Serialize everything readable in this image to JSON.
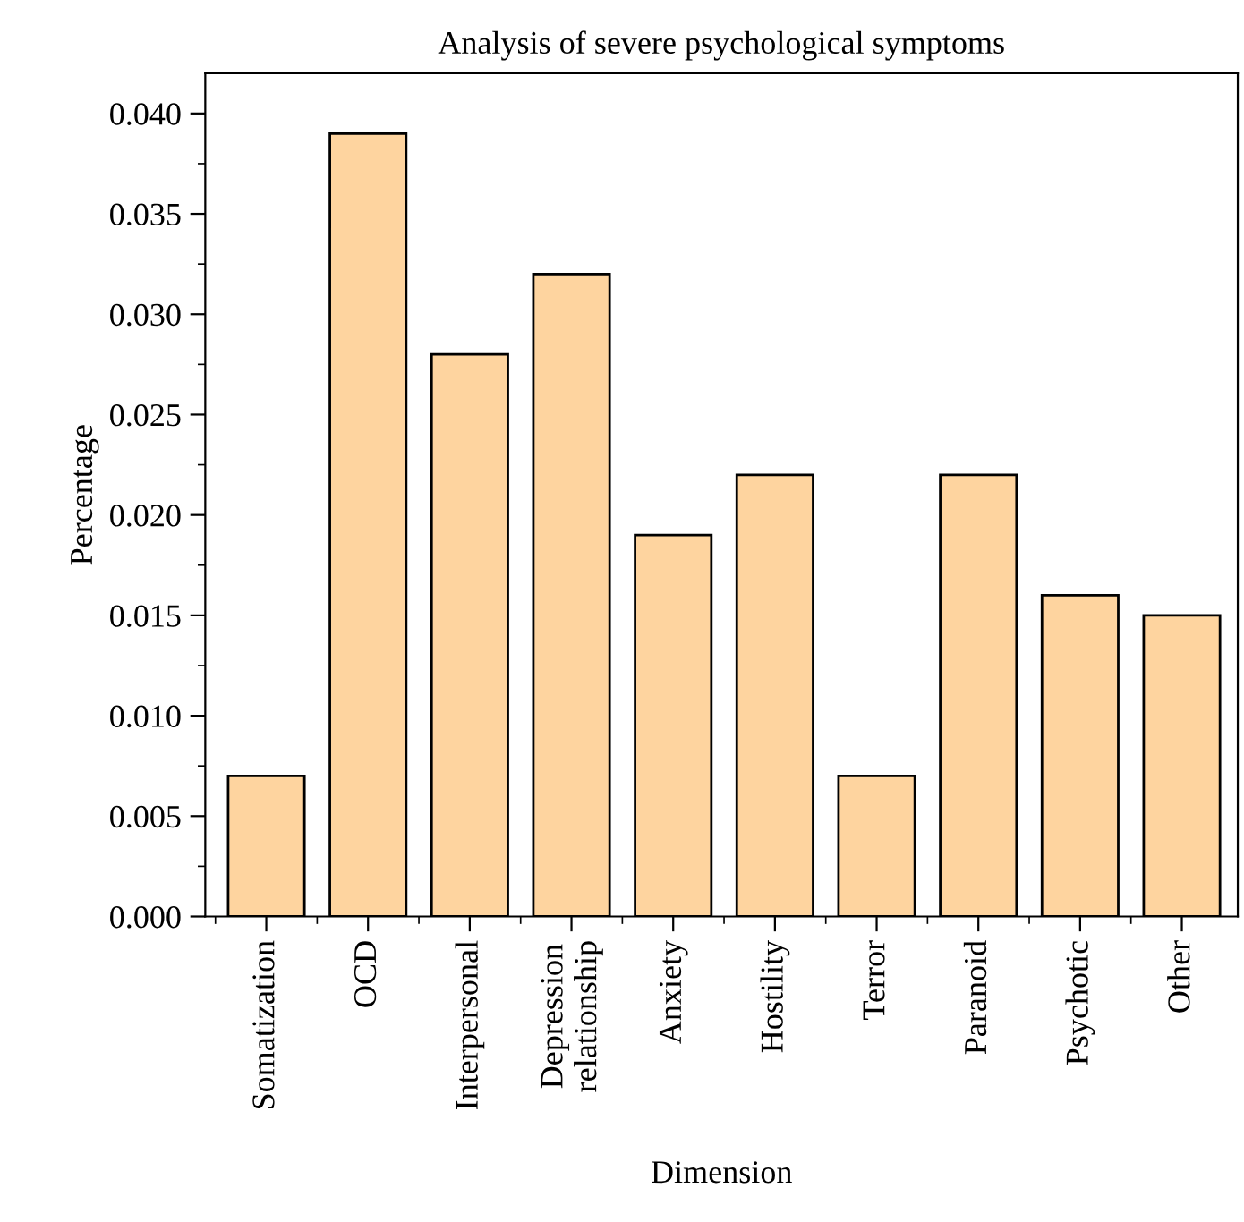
{
  "chart_data": {
    "type": "bar",
    "title": "Analysis of severe psychological symptoms",
    "xlabel": "Dimension",
    "ylabel": "Percentage",
    "categories": [
      "Somatization",
      "OCD",
      "Interpersonal",
      "Depression\nrelationship",
      "Anxiety",
      "Hostility",
      "Terror",
      "Paranoid",
      "Psychotic",
      "Other"
    ],
    "values": [
      0.007,
      0.039,
      0.028,
      0.032,
      0.019,
      0.022,
      0.007,
      0.022,
      0.016,
      0.015
    ],
    "color": "#fed49f",
    "ylim": [
      0,
      0.042
    ],
    "yticks": [
      {
        "value": 0,
        "label": "0.000"
      },
      0.005,
      {
        "value": 0.01,
        "label": "0.010"
      },
      0.015,
      {
        "value": 0.02,
        "label": "0.020"
      },
      0.025,
      {
        "value": 0.03,
        "label": "0.030"
      },
      0.035,
      {
        "value": 0.04,
        "label": "0.040"
      }
    ],
    "grid": false,
    "legend": false
  }
}
